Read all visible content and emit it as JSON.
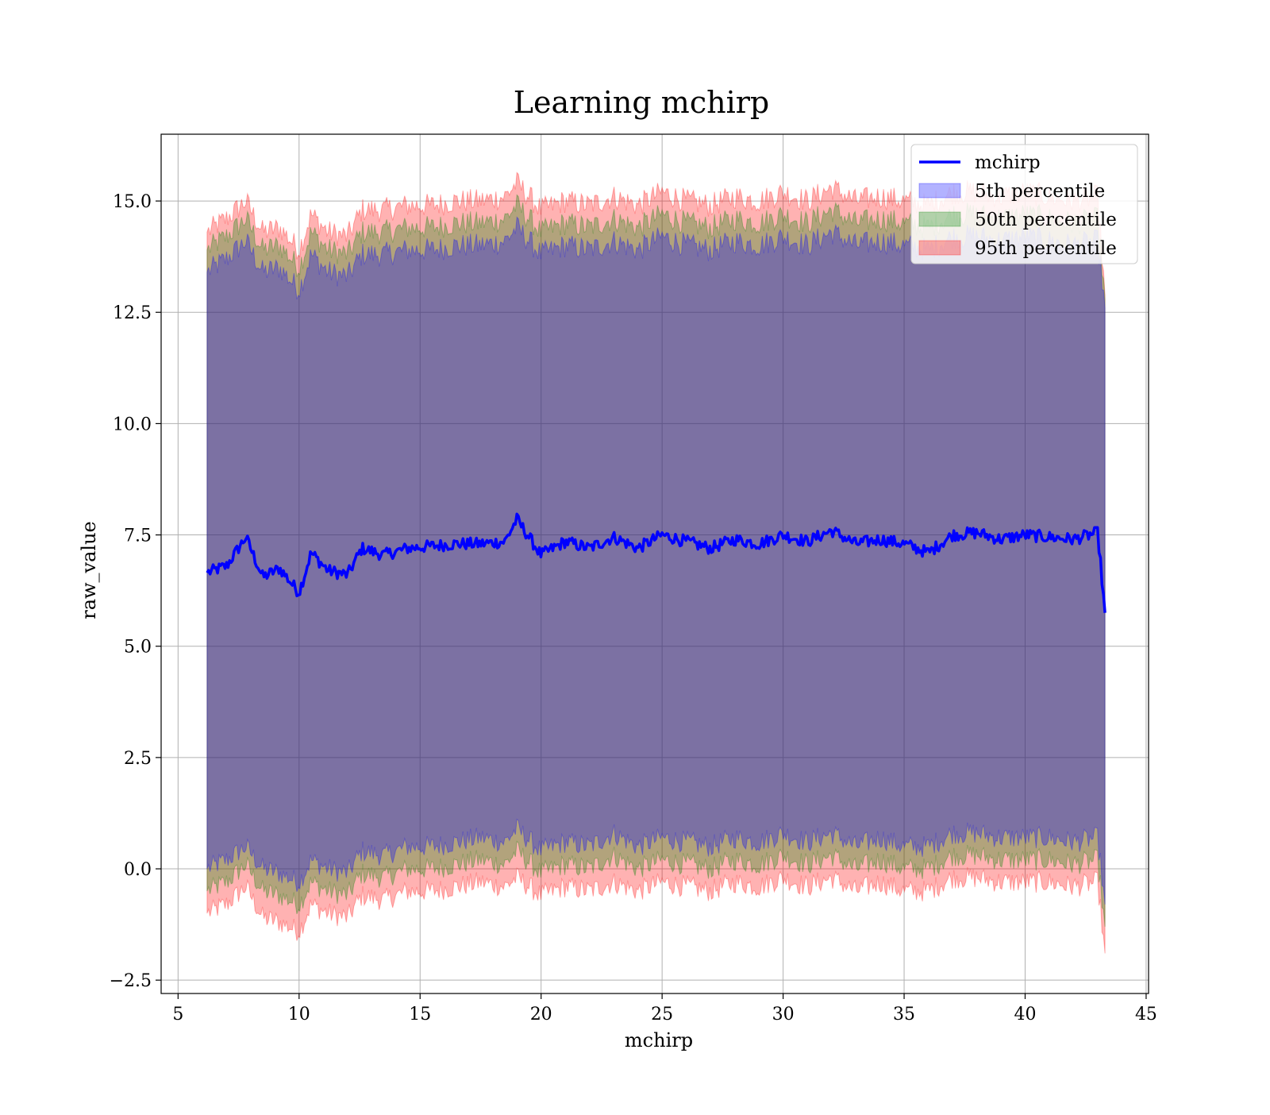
{
  "chart_data": {
    "type": "area",
    "title": "Learning mchirp",
    "xlabel": "mchirp",
    "ylabel": "raw_value",
    "xlim": [
      4.3,
      45.1
    ],
    "ylim": [
      -2.8,
      16.5
    ],
    "x_ticks": [
      5,
      10,
      15,
      20,
      25,
      30,
      35,
      40,
      45
    ],
    "x_tick_labels": [
      "5",
      "10",
      "15",
      "20",
      "25",
      "30",
      "35",
      "40",
      "45"
    ],
    "y_ticks": [
      -2.5,
      0.0,
      2.5,
      5.0,
      7.5,
      10.0,
      12.5,
      15.0
    ],
    "y_tick_labels": [
      "−2.5",
      "0.0",
      "2.5",
      "5.0",
      "7.5",
      "10.0",
      "12.5",
      "15.0"
    ],
    "grid": true,
    "legend_position": "top-right",
    "legend": [
      {
        "label": "mchirp",
        "kind": "line",
        "color": "#0000ff"
      },
      {
        "label": "5th percentile",
        "kind": "patch",
        "color": "#0000ff"
      },
      {
        "label": "50th percentile",
        "kind": "patch",
        "color": "#008000"
      },
      {
        "label": "95th percentile",
        "kind": "patch",
        "color": "#ff0000"
      }
    ],
    "x": [
      6.2,
      7.0,
      7.8,
      8.5,
      9.2,
      10.0,
      10.5,
      11.2,
      12.0,
      12.6,
      13.5,
      14.5,
      15.5,
      16.5,
      17.5,
      18.5,
      19.0,
      20.0,
      21.0,
      22.0,
      23.0,
      24.0,
      25.0,
      26.0,
      27.0,
      28.0,
      29.0,
      30.0,
      31.0,
      32.0,
      33.0,
      34.0,
      35.0,
      36.0,
      37.0,
      38.0,
      39.0,
      40.0,
      41.0,
      42.0,
      43.0,
      43.3
    ],
    "series": [
      {
        "name": "mchirp",
        "kind": "line",
        "color": "#0000ff",
        "values": [
          6.65,
          6.8,
          7.45,
          6.55,
          6.75,
          6.2,
          7.1,
          6.7,
          6.6,
          7.2,
          7.05,
          7.2,
          7.25,
          7.3,
          7.3,
          7.35,
          7.85,
          7.05,
          7.35,
          7.2,
          7.45,
          7.2,
          7.5,
          7.35,
          7.2,
          7.4,
          7.3,
          7.5,
          7.35,
          7.6,
          7.3,
          7.4,
          7.3,
          7.1,
          7.5,
          7.55,
          7.4,
          7.5,
          7.45,
          7.4,
          7.55,
          5.75
        ]
      },
      {
        "name": "5th percentile",
        "kind": "band",
        "color": "#0000ff",
        "lower": [
          0.0,
          0.2,
          0.5,
          0.0,
          -0.1,
          -0.3,
          0.2,
          0.0,
          -0.1,
          0.4,
          0.3,
          0.5,
          0.5,
          0.6,
          0.7,
          0.6,
          0.9,
          0.4,
          0.6,
          0.5,
          0.8,
          0.5,
          0.7,
          0.6,
          0.5,
          0.7,
          0.6,
          0.8,
          0.6,
          0.8,
          0.5,
          0.7,
          0.5,
          0.5,
          0.8,
          0.8,
          0.7,
          0.7,
          0.7,
          0.6,
          0.7,
          -0.8
        ],
        "upper": [
          13.4,
          13.7,
          14.1,
          13.4,
          13.5,
          13.0,
          13.8,
          13.4,
          13.3,
          13.8,
          13.8,
          13.9,
          13.9,
          14.0,
          14.0,
          14.1,
          14.4,
          13.8,
          14.0,
          13.9,
          14.1,
          13.9,
          14.2,
          14.0,
          13.9,
          14.1,
          14.0,
          14.2,
          14.0,
          14.3,
          14.0,
          14.1,
          14.0,
          13.9,
          14.2,
          14.2,
          14.1,
          14.2,
          14.1,
          14.0,
          14.1,
          12.6
        ]
      },
      {
        "name": "50th percentile",
        "kind": "band",
        "color": "#008000",
        "lower": [
          -0.5,
          -0.3,
          0.1,
          -0.5,
          -0.6,
          -0.8,
          -0.3,
          -0.5,
          -0.6,
          -0.1,
          -0.2,
          0.0,
          0.0,
          0.1,
          0.2,
          0.1,
          0.4,
          -0.1,
          0.1,
          0.0,
          0.3,
          0.0,
          0.2,
          0.1,
          0.0,
          0.2,
          0.1,
          0.3,
          0.1,
          0.3,
          0.0,
          0.2,
          0.0,
          0.0,
          0.3,
          0.3,
          0.2,
          0.2,
          0.2,
          0.1,
          0.2,
          -1.3
        ],
        "upper": [
          13.9,
          14.2,
          14.6,
          13.9,
          14.0,
          13.5,
          14.3,
          13.9,
          13.8,
          14.3,
          14.3,
          14.4,
          14.4,
          14.5,
          14.5,
          14.6,
          14.9,
          14.3,
          14.5,
          14.4,
          14.6,
          14.4,
          14.7,
          14.5,
          14.4,
          14.6,
          14.5,
          14.7,
          14.5,
          14.8,
          14.5,
          14.6,
          14.5,
          14.4,
          14.7,
          14.7,
          14.6,
          14.7,
          14.6,
          14.5,
          14.6,
          12.8
        ]
      },
      {
        "name": "95th percentile",
        "kind": "band",
        "color": "#ff0000",
        "lower": [
          -1.0,
          -0.8,
          -0.4,
          -1.1,
          -1.2,
          -1.4,
          -0.8,
          -1.0,
          -1.1,
          -0.6,
          -0.7,
          -0.5,
          -0.5,
          -0.4,
          -0.3,
          -0.4,
          -0.2,
          -0.6,
          -0.4,
          -0.5,
          -0.3,
          -0.5,
          -0.3,
          -0.4,
          -0.5,
          -0.3,
          -0.4,
          -0.2,
          -0.4,
          -0.2,
          -0.5,
          -0.3,
          -0.5,
          -0.5,
          -0.2,
          -0.2,
          -0.3,
          -0.3,
          -0.3,
          -0.4,
          -0.3,
          -1.9
        ],
        "upper": [
          14.3,
          14.6,
          15.0,
          14.3,
          14.4,
          13.9,
          14.7,
          14.3,
          14.2,
          14.8,
          14.8,
          14.9,
          14.9,
          15.0,
          15.0,
          15.1,
          15.4,
          14.8,
          15.0,
          14.9,
          15.1,
          14.9,
          15.2,
          15.0,
          14.9,
          15.1,
          15.0,
          15.2,
          15.0,
          15.3,
          15.0,
          15.1,
          15.0,
          14.9,
          15.2,
          15.2,
          15.1,
          15.2,
          15.1,
          15.0,
          15.1,
          12.9
        ]
      }
    ]
  }
}
